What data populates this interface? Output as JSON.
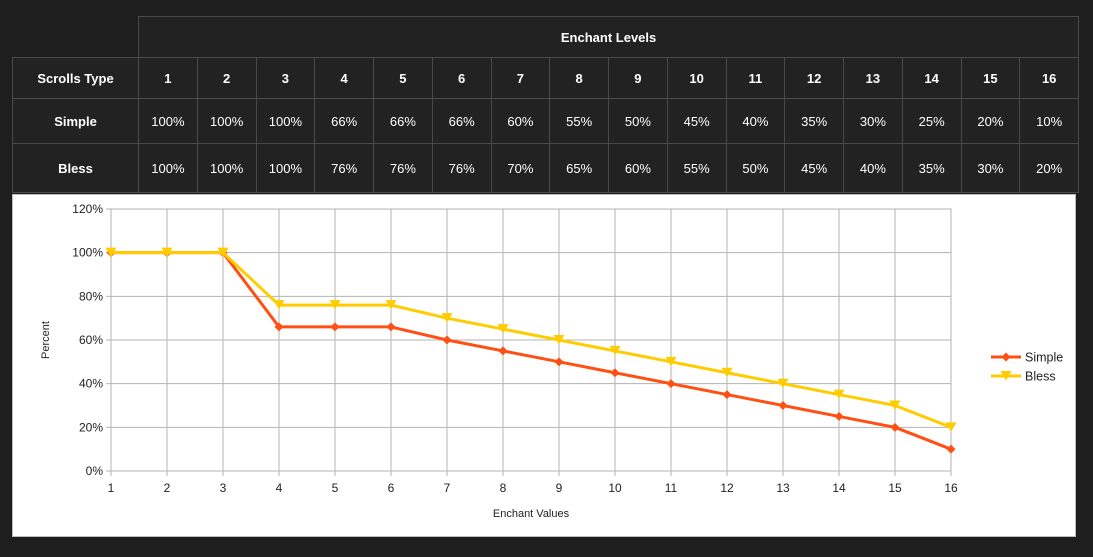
{
  "table": {
    "title": "Enchant Levels",
    "header_label": "Scrolls Type",
    "levels": [
      "1",
      "2",
      "3",
      "4",
      "5",
      "6",
      "7",
      "8",
      "9",
      "10",
      "11",
      "12",
      "13",
      "14",
      "15",
      "16"
    ],
    "rows": [
      {
        "name": "Simple",
        "cells": [
          "100%",
          "100%",
          "100%",
          "66%",
          "66%",
          "66%",
          "60%",
          "55%",
          "50%",
          "45%",
          "40%",
          "35%",
          "30%",
          "25%",
          "20%",
          "10%"
        ]
      },
      {
        "name": "Bless",
        "cells": [
          "100%",
          "100%",
          "100%",
          "76%",
          "76%",
          "76%",
          "70%",
          "65%",
          "60%",
          "55%",
          "50%",
          "45%",
          "40%",
          "35%",
          "30%",
          "20%"
        ]
      }
    ]
  },
  "chart_data": {
    "type": "line",
    "x": [
      1,
      2,
      3,
      4,
      5,
      6,
      7,
      8,
      9,
      10,
      11,
      12,
      13,
      14,
      15,
      16
    ],
    "series": [
      {
        "name": "Simple",
        "color": "#ff4f12",
        "marker": "diamond",
        "values": [
          100,
          100,
          100,
          66,
          66,
          66,
          60,
          55,
          50,
          45,
          40,
          35,
          30,
          25,
          20,
          10
        ]
      },
      {
        "name": "Bless",
        "color": "#ffcc00",
        "marker": "triangle-down",
        "values": [
          100,
          100,
          100,
          76,
          76,
          76,
          70,
          65,
          60,
          55,
          50,
          45,
          40,
          35,
          30,
          20
        ]
      }
    ],
    "xlabel": "Enchant Values",
    "ylabel": "Percent",
    "xlim": [
      1,
      16
    ],
    "ylim": [
      0,
      120
    ],
    "yticks": [
      "0%",
      "20%",
      "40%",
      "60%",
      "80%",
      "100%",
      "120%"
    ],
    "xticks": [
      "1",
      "2",
      "3",
      "4",
      "5",
      "6",
      "7",
      "8",
      "9",
      "10",
      "11",
      "12",
      "13",
      "14",
      "15",
      "16"
    ],
    "grid": true,
    "legend": "right"
  }
}
